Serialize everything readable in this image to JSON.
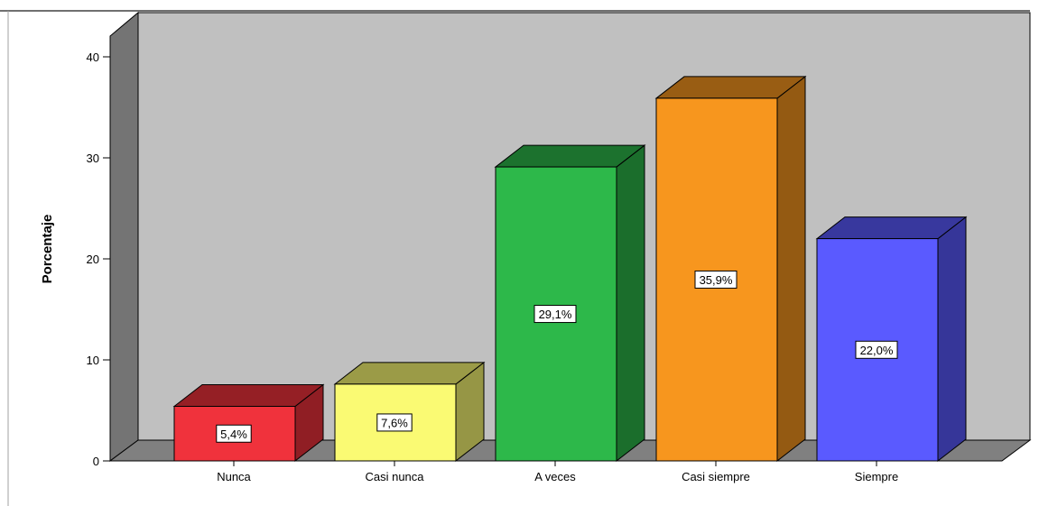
{
  "chart_data": {
    "type": "bar",
    "title": "",
    "xlabel": "",
    "ylabel": "Porcentaje",
    "ylim": [
      0,
      43
    ],
    "yticks": [
      0,
      10,
      20,
      30,
      40
    ],
    "yticklabels": [
      "0",
      "10",
      "20",
      "30",
      "40"
    ],
    "categories": [
      "Nunca",
      "Casi nunca",
      "A veces",
      "Casi siempre",
      "Siempre"
    ],
    "values": [
      5.4,
      7.6,
      29.1,
      35.9,
      22.0
    ],
    "data_labels": [
      "5,4%",
      "7,6%",
      "29,1%",
      "35,9%",
      "22,0%"
    ],
    "colors": [
      "#f0323c",
      "#fafa73",
      "#2db84a",
      "#f7961e",
      "#5a5aff"
    ],
    "grid": false,
    "style": "3d",
    "plot_background": "#c0c0c0",
    "floor_color": "#808080",
    "wall_color": "#707070"
  }
}
